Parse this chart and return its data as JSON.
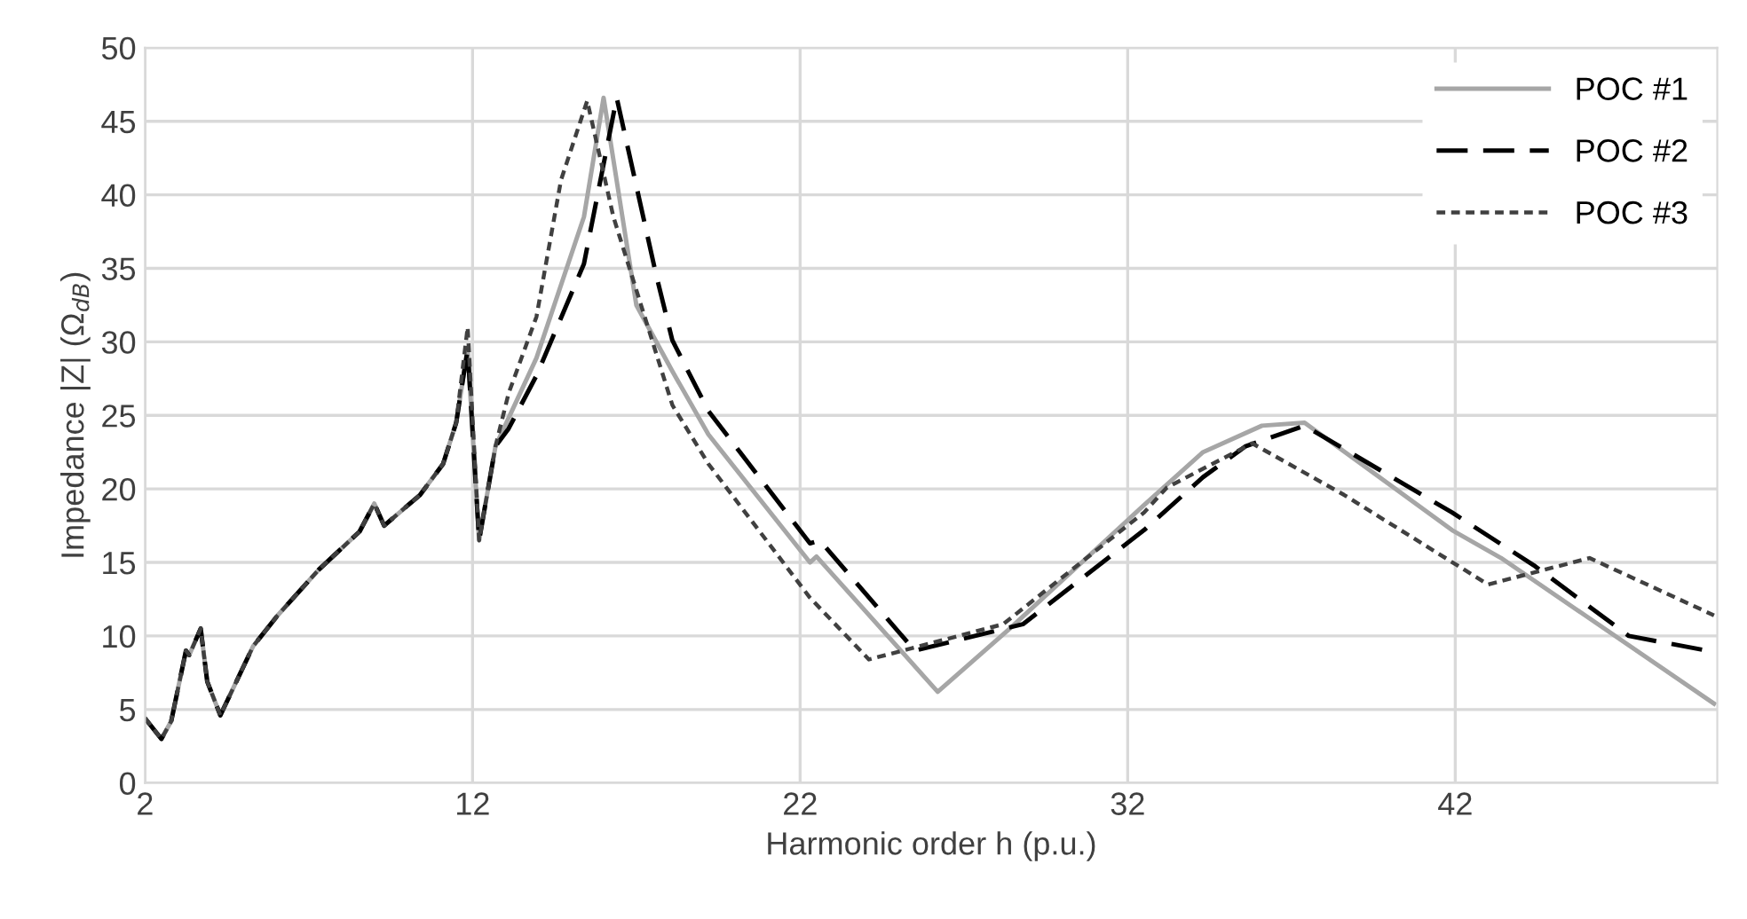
{
  "chart_data": {
    "type": "line",
    "xlabel": "Harmonic order h (p.u.)",
    "ylabel": "Impedance |Z| (Ω$_{dB}$)",
    "xlim": [
      2,
      50
    ],
    "ylim": [
      0,
      50
    ],
    "xticks": [
      2,
      12,
      22,
      32,
      42
    ],
    "yticks": [
      0,
      5,
      10,
      15,
      20,
      25,
      30,
      35,
      40,
      45,
      50
    ],
    "grid": true,
    "legend": "top right",
    "marker": "none",
    "series": [
      {
        "name": "POC #1",
        "color": "#a6a6a6",
        "line_style": "solid",
        "x": [
          2,
          2.5,
          2.8,
          3.25,
          3.35,
          3.7,
          3.9,
          4.3,
          5.3,
          6.05,
          7.3,
          8.55,
          9.0,
          9.3,
          10.4,
          11.1,
          11.5,
          11.85,
          12.2,
          12.7,
          13.95,
          15.4,
          16.0,
          17.0,
          18.1,
          19.2,
          22.3,
          22.5,
          26.2,
          28.4,
          32.5,
          34.3,
          36.1,
          37.4,
          41.9,
          43.4,
          49.9
        ],
        "values": [
          4.4,
          3.0,
          4.2,
          9.0,
          8.7,
          10.5,
          6.9,
          4.6,
          9.3,
          11.4,
          14.5,
          17.1,
          19.0,
          17.5,
          19.6,
          21.7,
          24.5,
          29.5,
          16.5,
          22.9,
          28.9,
          38.5,
          46.6,
          32.5,
          28.0,
          23.7,
          15.0,
          15.4,
          6.2,
          10.5,
          18.9,
          22.5,
          24.3,
          24.5,
          17.2,
          15.3,
          5.4
        ]
      },
      {
        "name": "POC #2",
        "color": "#000000",
        "line_style": "dashed",
        "x": [
          2,
          2.5,
          2.8,
          3.25,
          3.35,
          3.7,
          3.9,
          4.3,
          5.3,
          6.05,
          7.3,
          8.55,
          9.0,
          9.3,
          10.4,
          11.1,
          11.5,
          11.85,
          12.2,
          12.7,
          13.1,
          13.95,
          15.4,
          16.4,
          17.6,
          18.1,
          19.2,
          22.3,
          22.6,
          25.5,
          28.8,
          32.5,
          34.3,
          35.6,
          37.4,
          41.9,
          44.4,
          47.3,
          49.7
        ],
        "values": [
          4.4,
          3.0,
          4.2,
          9.0,
          8.7,
          10.5,
          6.9,
          4.6,
          9.3,
          11.4,
          14.5,
          17.1,
          19.0,
          17.5,
          19.6,
          21.7,
          24.5,
          29.5,
          16.5,
          22.9,
          24.1,
          27.7,
          35.3,
          46.6,
          34.6,
          30.1,
          25.3,
          16.3,
          16.5,
          9.0,
          10.8,
          17.2,
          20.8,
          22.9,
          24.3,
          18.4,
          14.8,
          10.0,
          9.0
        ]
      },
      {
        "name": "POC #3",
        "color": "#404040",
        "line_style": "dotted",
        "x": [
          2,
          2.5,
          2.8,
          3.25,
          3.35,
          3.7,
          3.9,
          4.3,
          5.3,
          6.05,
          7.3,
          8.55,
          9.0,
          9.3,
          10.4,
          11.1,
          11.5,
          11.85,
          12.2,
          12.7,
          13.1,
          13.95,
          14.7,
          15.5,
          16.3,
          18.1,
          19.2,
          22.3,
          24.1,
          28.2,
          32.5,
          33.2,
          35.8,
          38.6,
          43.0,
          46.1,
          49.9
        ],
        "values": [
          4.4,
          3.0,
          4.2,
          9.0,
          8.7,
          10.5,
          6.9,
          4.6,
          9.3,
          11.4,
          14.5,
          17.1,
          19.0,
          17.5,
          19.6,
          21.7,
          24.5,
          31.0,
          16.5,
          22.9,
          26.5,
          31.7,
          41.0,
          46.4,
          38.5,
          25.7,
          21.7,
          12.6,
          8.4,
          10.8,
          18.4,
          20.1,
          23.1,
          19.6,
          13.5,
          15.3,
          11.4
        ]
      }
    ]
  }
}
